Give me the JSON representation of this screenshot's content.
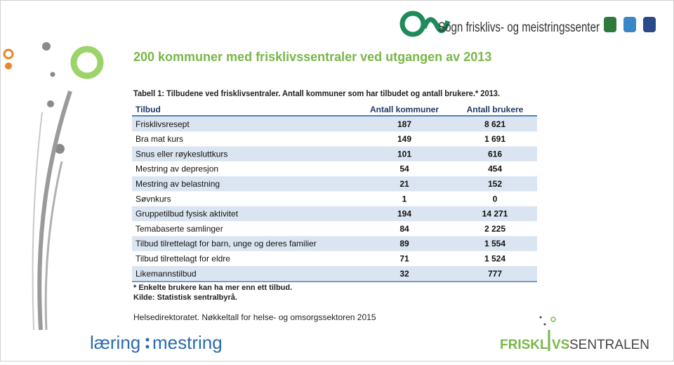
{
  "header": {
    "logo_text": "Sogn frisklivs- og meistringssenter"
  },
  "title": "200 kommuner med frisklivssentraler ved utgangen av 2013",
  "table": {
    "caption": "Tabell 1: Tilbudene ved frisklivsentraler. Antall kommuner som har tilbudet og antall brukere.* 2013.",
    "columns": [
      "Tilbud",
      "Antall kommuner",
      "Antall brukere"
    ],
    "rows": [
      [
        "Frisklivsresept",
        "187",
        "8 621"
      ],
      [
        "Bra mat kurs",
        "149",
        "1 691"
      ],
      [
        "Snus eller røykesluttkurs",
        "101",
        "616"
      ],
      [
        "Mestring av depresjon",
        "54",
        "454"
      ],
      [
        "Mestring av belastning",
        "21",
        "152"
      ],
      [
        "Søvnkurs",
        "1",
        "0"
      ],
      [
        "Gruppetilbud fysisk aktivitet",
        "194",
        "14 271"
      ],
      [
        "Temabaserte samlinger",
        "84",
        "2 225"
      ],
      [
        "Tilbud tilrettelagt for barn, unge og deres familier",
        "89",
        "1 554"
      ],
      [
        "Tilbud tilrettelagt for eldre",
        "71",
        "1 524"
      ],
      [
        "Likemannstilbud",
        "32",
        "777"
      ]
    ],
    "notes": [
      "* Enkelte brukere kan ha mer enn ett tilbud.",
      "Kilde: Statistisk sentralbyrå."
    ]
  },
  "source": "Helsedirektoratet. Nøkkeltall for helse- og omsorgssektoren 2015",
  "footer": {
    "left_logo": [
      "læring",
      "mestring"
    ],
    "right_logo": [
      "FRISKL",
      "VS",
      "SENTRALEN"
    ]
  }
}
